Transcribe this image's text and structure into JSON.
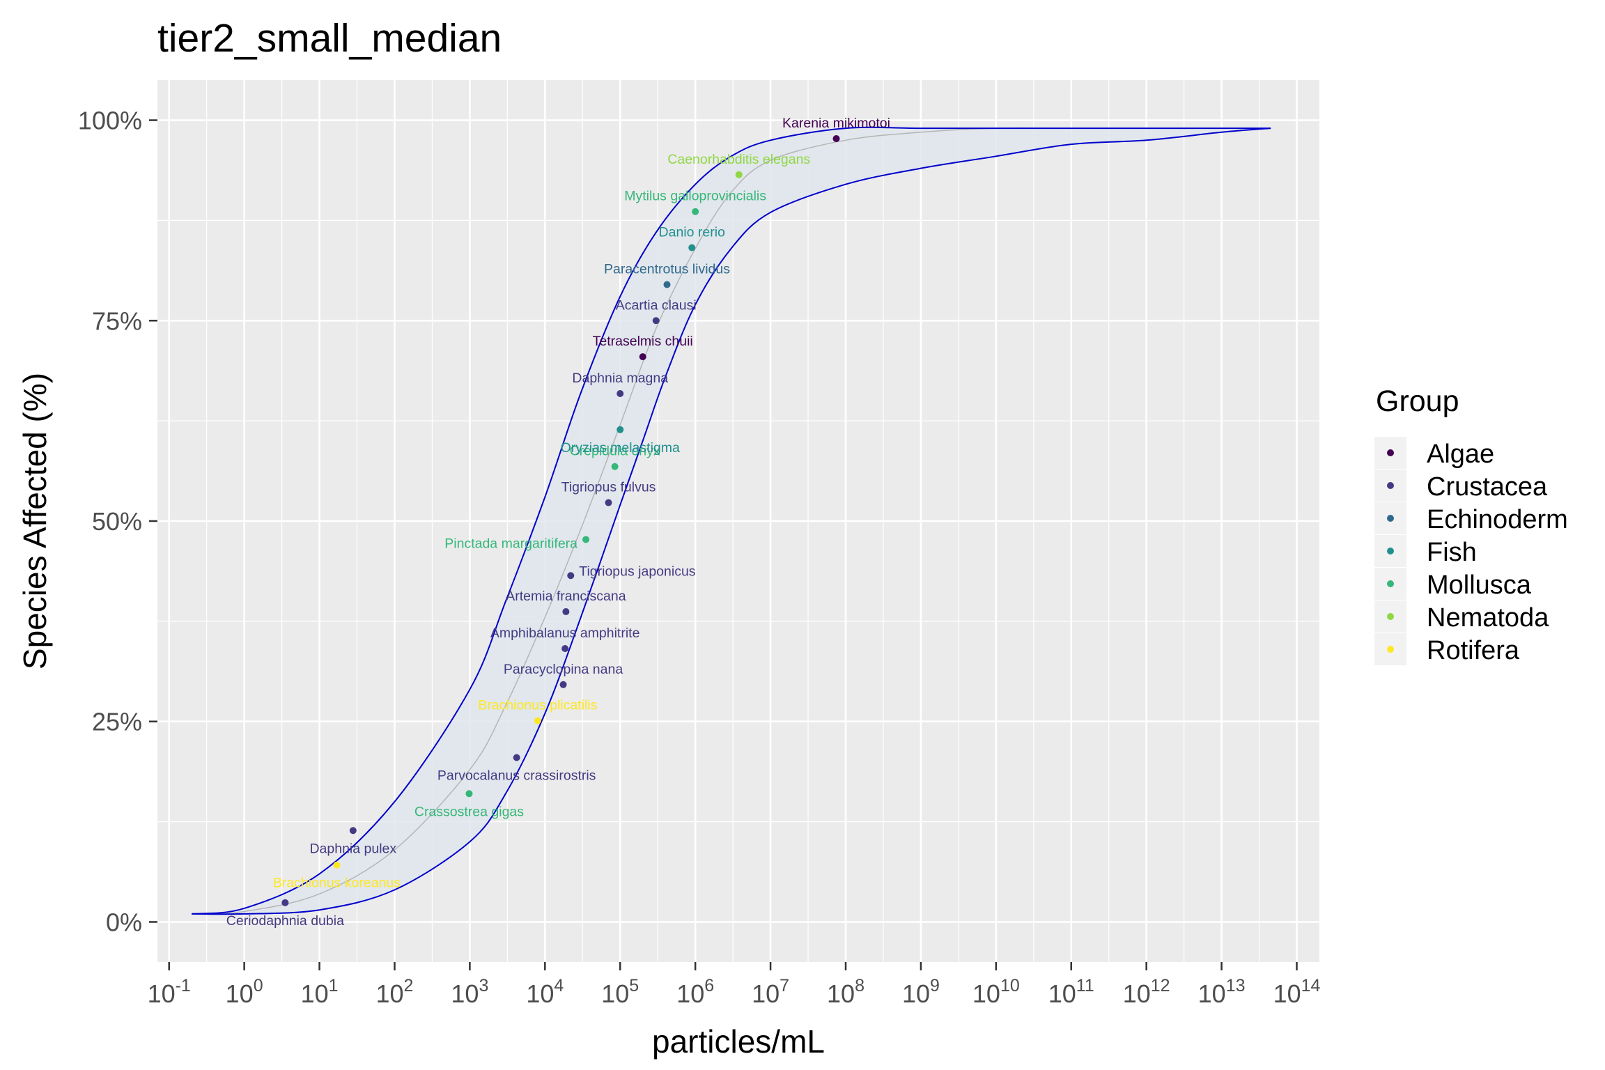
{
  "chart_data": {
    "type": "scatter",
    "title": "tier2_small_median",
    "xlabel": "particles/mL",
    "ylabel": "Species Affected (%)",
    "x_scale": "log10",
    "xlim": [
      0.07,
      200000000000000
    ],
    "ylim": [
      -0.05,
      1.05
    ],
    "grid": true,
    "x_ticks": [
      {
        "value": 0.1,
        "base": "10",
        "exp": "-1"
      },
      {
        "value": 1,
        "base": "10",
        "exp": "0"
      },
      {
        "value": 10,
        "base": "10",
        "exp": "1"
      },
      {
        "value": 100,
        "base": "10",
        "exp": "2"
      },
      {
        "value": 1000,
        "base": "10",
        "exp": "3"
      },
      {
        "value": 10000,
        "base": "10",
        "exp": "4"
      },
      {
        "value": 100000,
        "base": "10",
        "exp": "5"
      },
      {
        "value": 1000000,
        "base": "10",
        "exp": "6"
      },
      {
        "value": 10000000,
        "base": "10",
        "exp": "7"
      },
      {
        "value": 100000000,
        "base": "10",
        "exp": "8"
      },
      {
        "value": 1000000000,
        "base": "10",
        "exp": "9"
      },
      {
        "value": 10000000000,
        "base": "10",
        "exp": "10"
      },
      {
        "value": 100000000000,
        "base": "10",
        "exp": "11"
      },
      {
        "value": 1000000000000,
        "base": "10",
        "exp": "12"
      },
      {
        "value": 10000000000000,
        "base": "10",
        "exp": "13"
      },
      {
        "value": 100000000000000,
        "base": "10",
        "exp": "14"
      }
    ],
    "y_ticks": [
      {
        "value": 0,
        "label": "0%"
      },
      {
        "value": 0.25,
        "label": "25%"
      },
      {
        "value": 0.5,
        "label": "50%"
      },
      {
        "value": 0.75,
        "label": "75%"
      },
      {
        "value": 1,
        "label": "100%"
      }
    ],
    "legend": {
      "title": "Group",
      "placement": "right",
      "groups": [
        {
          "name": "Algae",
          "color": "#440154"
        },
        {
          "name": "Crustacea",
          "color": "#443a83"
        },
        {
          "name": "Echinoderm",
          "color": "#31688e"
        },
        {
          "name": "Fish",
          "color": "#21908d"
        },
        {
          "name": "Mollusca",
          "color": "#35b779"
        },
        {
          "name": "Nematoda",
          "color": "#8fd744"
        },
        {
          "name": "Rotifera",
          "color": "#fde725"
        }
      ]
    },
    "points": [
      {
        "species": "Ceriodaphnia dubia",
        "group": "Crustacea",
        "x": 3.5,
        "y": 0.024,
        "label_pos": "below"
      },
      {
        "species": "Brachionus koreanus",
        "group": "Rotifera",
        "x": 17,
        "y": 0.071,
        "label_pos": "below"
      },
      {
        "species": "Daphnia pulex",
        "group": "Crustacea",
        "x": 28,
        "y": 0.114,
        "label_pos": "below"
      },
      {
        "species": "Crassostrea gigas",
        "group": "Mollusca",
        "x": 980,
        "y": 0.16,
        "label_pos": "below"
      },
      {
        "species": "Parvocalanus crassirostris",
        "group": "Crustacea",
        "x": 4200,
        "y": 0.205,
        "label_pos": "below"
      },
      {
        "species": "Brachionus plicatilis",
        "group": "Rotifera",
        "x": 8000,
        "y": 0.251,
        "label_pos": "above"
      },
      {
        "species": "Paracyclopina nana",
        "group": "Crustacea",
        "x": 17500,
        "y": 0.296,
        "label_pos": "above"
      },
      {
        "species": "Amphibalanus amphitrite",
        "group": "Crustacea",
        "x": 18500,
        "y": 0.341,
        "label_pos": "above"
      },
      {
        "species": "Artemia franciscana",
        "group": "Crustacea",
        "x": 19000,
        "y": 0.387,
        "label_pos": "above"
      },
      {
        "species": "Tigriopus japonicus",
        "group": "Crustacea",
        "x": 22000,
        "y": 0.432,
        "label_pos": "right"
      },
      {
        "species": "Pinctada margaritifera",
        "group": "Mollusca",
        "x": 35000,
        "y": 0.477,
        "label_pos": "left"
      },
      {
        "species": "Tigriopus fulvus",
        "group": "Crustacea",
        "x": 70000,
        "y": 0.523,
        "label_pos": "above"
      },
      {
        "species": "Crepidula onyx",
        "group": "Mollusca",
        "x": 85000,
        "y": 0.568,
        "label_pos": "above"
      },
      {
        "species": "Oryzias melastigma",
        "group": "Fish",
        "x": 100000,
        "y": 0.614,
        "label_pos": "below"
      },
      {
        "species": "Daphnia magna",
        "group": "Crustacea",
        "x": 100000,
        "y": 0.659,
        "label_pos": "above"
      },
      {
        "species": "Tetraselmis chuii",
        "group": "Algae",
        "x": 200000,
        "y": 0.705,
        "label_pos": "above"
      },
      {
        "species": "Acartia clausi",
        "group": "Crustacea",
        "x": 300000,
        "y": 0.75,
        "label_pos": "above"
      },
      {
        "species": "Paracentrotus lividus",
        "group": "Echinoderm",
        "x": 420000,
        "y": 0.795,
        "label_pos": "above"
      },
      {
        "species": "Danio rerio",
        "group": "Fish",
        "x": 900000,
        "y": 0.841,
        "label_pos": "above"
      },
      {
        "species": "Mytilus galloprovincialis",
        "group": "Mollusca",
        "x": 1000000,
        "y": 0.886,
        "label_pos": "above"
      },
      {
        "species": "Caenorhabditis elegans",
        "group": "Nematoda",
        "x": 3800000,
        "y": 0.932,
        "label_pos": "above"
      },
      {
        "species": "Karenia mikimotoi",
        "group": "Algae",
        "x": 75000000,
        "y": 0.977,
        "label_pos": "above"
      }
    ],
    "median_curve": {
      "x": [
        0.2,
        1,
        10,
        100,
        1000,
        3000,
        10000,
        30000,
        100000,
        300000,
        1000000,
        3000000,
        10000000,
        100000000,
        1000000000,
        10000000000,
        100000000000,
        1000000000000,
        10000000000000,
        45000000000000
      ],
      "y": [
        0.01,
        0.013,
        0.035,
        0.09,
        0.19,
        0.27,
        0.38,
        0.49,
        0.62,
        0.74,
        0.84,
        0.91,
        0.95,
        0.975,
        0.985,
        0.99,
        0.99,
        0.99,
        0.99,
        0.99
      ]
    },
    "ci_lower": {
      "x": [
        0.2,
        1,
        10,
        100,
        1000,
        3000,
        10000,
        30000,
        100000,
        200000,
        400000,
        1000000,
        3000000,
        10000000,
        100000000,
        1000000000,
        10000000000,
        100000000000,
        1000000000000,
        10000000000000,
        45000000000000
      ],
      "y": [
        0.01,
        0.01,
        0.015,
        0.04,
        0.1,
        0.16,
        0.26,
        0.38,
        0.52,
        0.6,
        0.68,
        0.77,
        0.84,
        0.885,
        0.92,
        0.94,
        0.955,
        0.97,
        0.975,
        0.985,
        0.99
      ]
    },
    "ci_upper": {
      "x": [
        0.2,
        1,
        10,
        100,
        1000,
        3000,
        10000,
        30000,
        100000,
        300000,
        1000000,
        3000000,
        10000000,
        100000000,
        1000000000,
        10000000000,
        100000000000,
        1000000000000,
        10000000000000,
        45000000000000
      ],
      "y": [
        0.01,
        0.017,
        0.06,
        0.15,
        0.29,
        0.4,
        0.53,
        0.66,
        0.78,
        0.86,
        0.92,
        0.955,
        0.975,
        0.99,
        0.99,
        0.99,
        0.99,
        0.99,
        0.99,
        0.99
      ]
    }
  }
}
